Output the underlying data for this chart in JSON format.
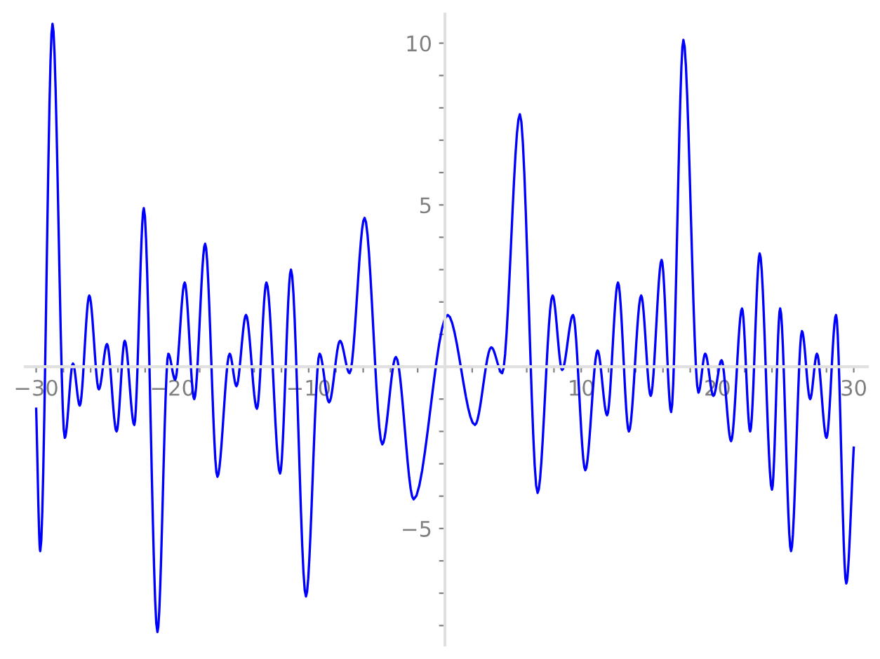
{
  "chart_data": {
    "type": "line",
    "x": [
      -30,
      -29.7,
      -28.8,
      -27.9,
      -27.3,
      -26.8,
      -26.1,
      -25.4,
      -24.8,
      -24.1,
      -23.5,
      -22.8,
      -22.1,
      -21.1,
      -20.3,
      -19.8,
      -19.1,
      -18.4,
      -17.6,
      -16.7,
      -15.8,
      -15.3,
      -14.6,
      -13.8,
      -13.1,
      -12.1,
      -11.3,
      -10.2,
      -9.2,
      -8.5,
      -7.7,
      -7.0,
      -5.9,
      -4.6,
      -3.6,
      -2.3,
      0.2,
      2.2,
      3.4,
      4.2,
      5.5,
      6.8,
      7.9,
      8.6,
      9.4,
      10.3,
      11.2,
      11.9,
      12.7,
      13.5,
      14.4,
      15.1,
      15.9,
      16.6,
      17.5,
      18.6,
      19.1,
      19.7,
      20.3,
      21.0,
      21.8,
      22.4,
      23.1,
      24.0,
      24.6,
      25.4,
      26.2,
      26.8,
      27.3,
      28.0,
      28.7,
      29.45,
      30
    ],
    "values": [
      -1.3,
      -5.7,
      10.6,
      -2.2,
      0.1,
      -1.2,
      2.2,
      -0.7,
      0.7,
      -2.0,
      0.8,
      -1.8,
      4.9,
      -8.2,
      0.4,
      -0.4,
      2.6,
      -1.0,
      3.8,
      -3.4,
      0.4,
      -0.6,
      1.6,
      -1.3,
      2.6,
      -3.3,
      3.0,
      -7.1,
      0.4,
      -1.1,
      0.8,
      -0.2,
      4.6,
      -2.4,
      0.3,
      -4.1,
      1.6,
      -1.8,
      0.6,
      -0.2,
      7.8,
      -3.9,
      2.2,
      -0.1,
      1.6,
      -3.2,
      0.5,
      -1.5,
      2.6,
      -2.0,
      2.2,
      -0.9,
      3.3,
      -1.4,
      10.1,
      -0.8,
      0.4,
      -0.9,
      0.2,
      -2.3,
      1.8,
      -2.0,
      3.5,
      -3.8,
      1.8,
      -5.7,
      1.1,
      -1.0,
      0.4,
      -2.2,
      1.6,
      -6.7,
      -2.5
    ],
    "color": "#0000ff",
    "xlim": [
      -30.8,
      31.0
    ],
    "ylim": [
      -8.6,
      10.9
    ],
    "xticks": [
      {
        "value": -30,
        "label": "−30"
      },
      {
        "value": -28,
        "label": null
      },
      {
        "value": -26,
        "label": null
      },
      {
        "value": -24,
        "label": null
      },
      {
        "value": -22,
        "label": null
      },
      {
        "value": -20,
        "label": "−20"
      },
      {
        "value": -18,
        "label": null
      },
      {
        "value": -16,
        "label": null
      },
      {
        "value": -14,
        "label": null
      },
      {
        "value": -12,
        "label": null
      },
      {
        "value": -10,
        "label": "−10"
      },
      {
        "value": -8,
        "label": null
      },
      {
        "value": -6,
        "label": null
      },
      {
        "value": -4,
        "label": null
      },
      {
        "value": -2,
        "label": null
      },
      {
        "value": 2,
        "label": null
      },
      {
        "value": 4,
        "label": null
      },
      {
        "value": 6,
        "label": null
      },
      {
        "value": 8,
        "label": null
      },
      10,
      {
        "value": 12,
        "label": null
      },
      {
        "value": 14,
        "label": null
      },
      {
        "value": 16,
        "label": null
      },
      {
        "value": 18,
        "label": null
      },
      20,
      {
        "value": 22,
        "label": null
      },
      {
        "value": 24,
        "label": null
      },
      {
        "value": 26,
        "label": null
      },
      {
        "value": 28,
        "label": null
      },
      30
    ],
    "yticks": [
      {
        "value": -8,
        "label": null
      },
      {
        "value": -7,
        "label": null
      },
      {
        "value": -6,
        "label": null
      },
      {
        "value": -5,
        "label": "−5"
      },
      {
        "value": -4,
        "label": null
      },
      {
        "value": -3,
        "label": null
      },
      {
        "value": -2,
        "label": null
      },
      {
        "value": -1,
        "label": null
      },
      {
        "value": 1,
        "label": null
      },
      {
        "value": 2,
        "label": null
      },
      {
        "value": 3,
        "label": null
      },
      {
        "value": 4,
        "label": null
      },
      5,
      {
        "value": 6,
        "label": null
      },
      {
        "value": 7,
        "label": null
      },
      {
        "value": 8,
        "label": null
      },
      {
        "value": 9,
        "label": null
      },
      10
    ],
    "grid": false
  }
}
